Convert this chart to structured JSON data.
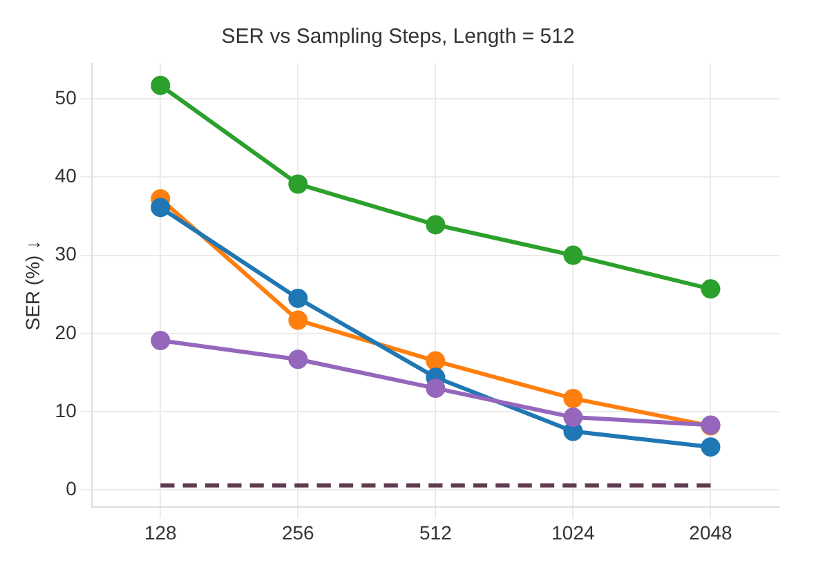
{
  "chart_data": {
    "type": "line",
    "title": "SER vs Sampling Steps, Length = 512",
    "ylabel": "SER (%) ↓",
    "categories": [
      "128",
      "256",
      "512",
      "1024",
      "2048"
    ],
    "ylim": [
      -2.2,
      54.5
    ],
    "yticks": [
      0,
      10,
      20,
      30,
      40,
      50
    ],
    "grid": true,
    "legend": false,
    "marker": "circle",
    "line_style": "solid",
    "series": [
      {
        "color": "#2ca02c",
        "values": [
          51.7,
          39.1,
          33.9,
          30.0,
          25.7
        ]
      },
      {
        "color": "#ff7f0e",
        "values": [
          37.2,
          21.7,
          16.5,
          11.7,
          8.2
        ]
      },
      {
        "color": "#1f77b4",
        "values": [
          36.1,
          24.5,
          14.4,
          7.5,
          5.5
        ]
      },
      {
        "color": "#9467bd",
        "values": [
          19.1,
          16.7,
          13.0,
          9.3,
          8.3
        ]
      },
      {
        "color": "#5e3a4e",
        "values": [
          0.6,
          0.6,
          0.6,
          0.6,
          0.6
        ],
        "marker": "none",
        "line_style": "dashed"
      }
    ]
  }
}
